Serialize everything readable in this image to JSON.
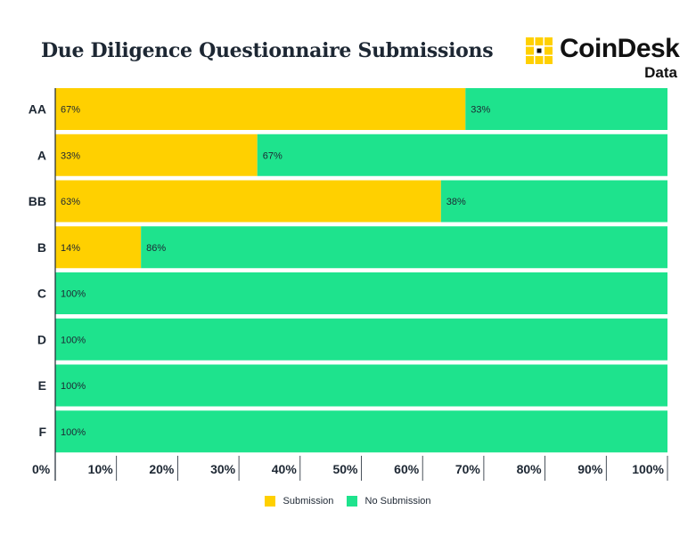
{
  "title": "Due Diligence Questionnaire Submissions",
  "logo": {
    "name": "CoinDesk",
    "sub": "Data",
    "icon": "coindesk-logo-icon"
  },
  "colors": {
    "submission": "#FFD000",
    "no_submission": "#1EE38D",
    "text": "#1d2733"
  },
  "legend": [
    {
      "label": "Submission",
      "color": "#FFD000"
    },
    {
      "label": "No Submission",
      "color": "#1EE38D"
    }
  ],
  "chart_data": {
    "type": "bar",
    "orientation": "horizontal",
    "stacked": true,
    "title": "Due Diligence Questionnaire Submissions",
    "categories": [
      "AA",
      "A",
      "BB",
      "B",
      "C",
      "D",
      "E",
      "F"
    ],
    "series": [
      {
        "name": "Submission",
        "values": [
          67,
          33,
          63,
          14,
          0,
          0,
          0,
          0
        ],
        "labels": [
          "67%",
          "33%",
          "63%",
          "14%",
          "",
          "",
          "",
          ""
        ]
      },
      {
        "name": "No Submission",
        "values": [
          33,
          67,
          38,
          86,
          100,
          100,
          100,
          100
        ],
        "labels": [
          "33%",
          "67%",
          "38%",
          "86%",
          "100%",
          "100%",
          "100%",
          "100%"
        ]
      }
    ],
    "xticks": [
      "0%",
      "10%",
      "20%",
      "30%",
      "40%",
      "50%",
      "60%",
      "70%",
      "80%",
      "90%",
      "100%"
    ],
    "xlim": [
      0,
      100
    ],
    "legend_position": "bottom"
  }
}
